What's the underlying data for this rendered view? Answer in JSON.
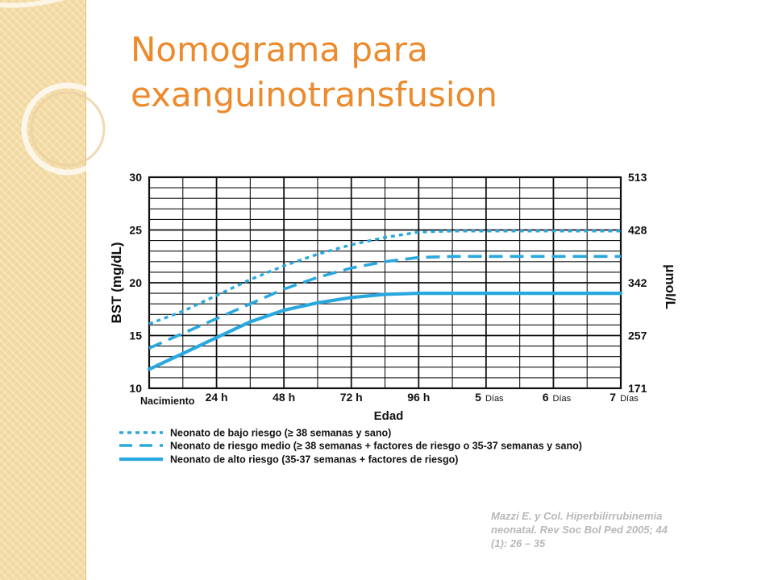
{
  "slide": {
    "title_line1": "Nomograma para",
    "title_line2": "exanguinotransfusion",
    "citation_line1": "Mazzi E. y Col. Hiperbilirrubinemia",
    "citation_line2": "neonatal. Rev Soc Bol Ped 2005; 44",
    "citation_line3": "(1): 26 – 35",
    "accent_color": "#ec8a2c",
    "band_color": "#f4dca6"
  },
  "chart_data": {
    "type": "line",
    "title": "",
    "xlabel": "Edad",
    "ylabel": "BST (mg/dL)",
    "y2label": "μmol/L",
    "ylim": [
      10,
      30
    ],
    "xlim_hours": [
      0,
      168
    ],
    "grid": true,
    "y_ticks": [
      {
        "value": 30,
        "label": "30"
      },
      {
        "value": 25,
        "label": "25"
      },
      {
        "value": 20,
        "label": "20"
      },
      {
        "value": 15,
        "label": "15"
      },
      {
        "value": 10,
        "label": "10"
      }
    ],
    "y2_ticks": [
      {
        "value": 30,
        "label": "513"
      },
      {
        "value": 25,
        "label": "428"
      },
      {
        "value": 20,
        "label": "342"
      },
      {
        "value": 15,
        "label": "257"
      },
      {
        "value": 10,
        "label": "171"
      }
    ],
    "x_ticks": [
      {
        "hours": 0,
        "label": "Nacimiento",
        "unit": ""
      },
      {
        "hours": 24,
        "label": "24 h",
        "unit": ""
      },
      {
        "hours": 48,
        "label": "48 h",
        "unit": ""
      },
      {
        "hours": 72,
        "label": "72 h",
        "unit": ""
      },
      {
        "hours": 96,
        "label": "96 h",
        "unit": ""
      },
      {
        "hours": 120,
        "label": "5",
        "unit": "Días"
      },
      {
        "hours": 144,
        "label": "6",
        "unit": "Días"
      },
      {
        "hours": 168,
        "label": "7",
        "unit": "Días"
      }
    ],
    "series": [
      {
        "name": "Neonato de bajo riesgo (≥ 38 semanas y sano)",
        "style": "dotted",
        "color": "#29a8e0",
        "points": [
          [
            0,
            16.1
          ],
          [
            12,
            17.3
          ],
          [
            24,
            18.8
          ],
          [
            36,
            20.3
          ],
          [
            48,
            21.6
          ],
          [
            60,
            22.7
          ],
          [
            72,
            23.6
          ],
          [
            84,
            24.3
          ],
          [
            96,
            24.8
          ],
          [
            108,
            24.9
          ],
          [
            120,
            24.9
          ],
          [
            132,
            24.9
          ],
          [
            144,
            24.9
          ],
          [
            156,
            24.9
          ],
          [
            168,
            24.9
          ]
        ]
      },
      {
        "name": "Neonato de riesgo medio (≥ 38 semanas + factores de riesgo o 35-37 semanas y sano)",
        "style": "dashed",
        "color": "#29a8e0",
        "points": [
          [
            0,
            13.8
          ],
          [
            12,
            15.2
          ],
          [
            24,
            16.6
          ],
          [
            36,
            18.0
          ],
          [
            48,
            19.4
          ],
          [
            60,
            20.5
          ],
          [
            72,
            21.4
          ],
          [
            84,
            22.0
          ],
          [
            96,
            22.4
          ],
          [
            108,
            22.5
          ],
          [
            120,
            22.5
          ],
          [
            132,
            22.5
          ],
          [
            144,
            22.5
          ],
          [
            156,
            22.5
          ],
          [
            168,
            22.5
          ]
        ]
      },
      {
        "name": "Neonato de alto riesgo (35-37 semanas + factores de riesgo)",
        "style": "solid",
        "color": "#29a8e0",
        "points": [
          [
            0,
            11.8
          ],
          [
            12,
            13.3
          ],
          [
            24,
            14.8
          ],
          [
            36,
            16.3
          ],
          [
            48,
            17.4
          ],
          [
            60,
            18.1
          ],
          [
            72,
            18.6
          ],
          [
            84,
            18.9
          ],
          [
            96,
            19.0
          ],
          [
            108,
            19.0
          ],
          [
            120,
            19.0
          ],
          [
            132,
            19.0
          ],
          [
            144,
            19.0
          ],
          [
            156,
            19.0
          ],
          [
            168,
            19.0
          ]
        ]
      }
    ]
  }
}
